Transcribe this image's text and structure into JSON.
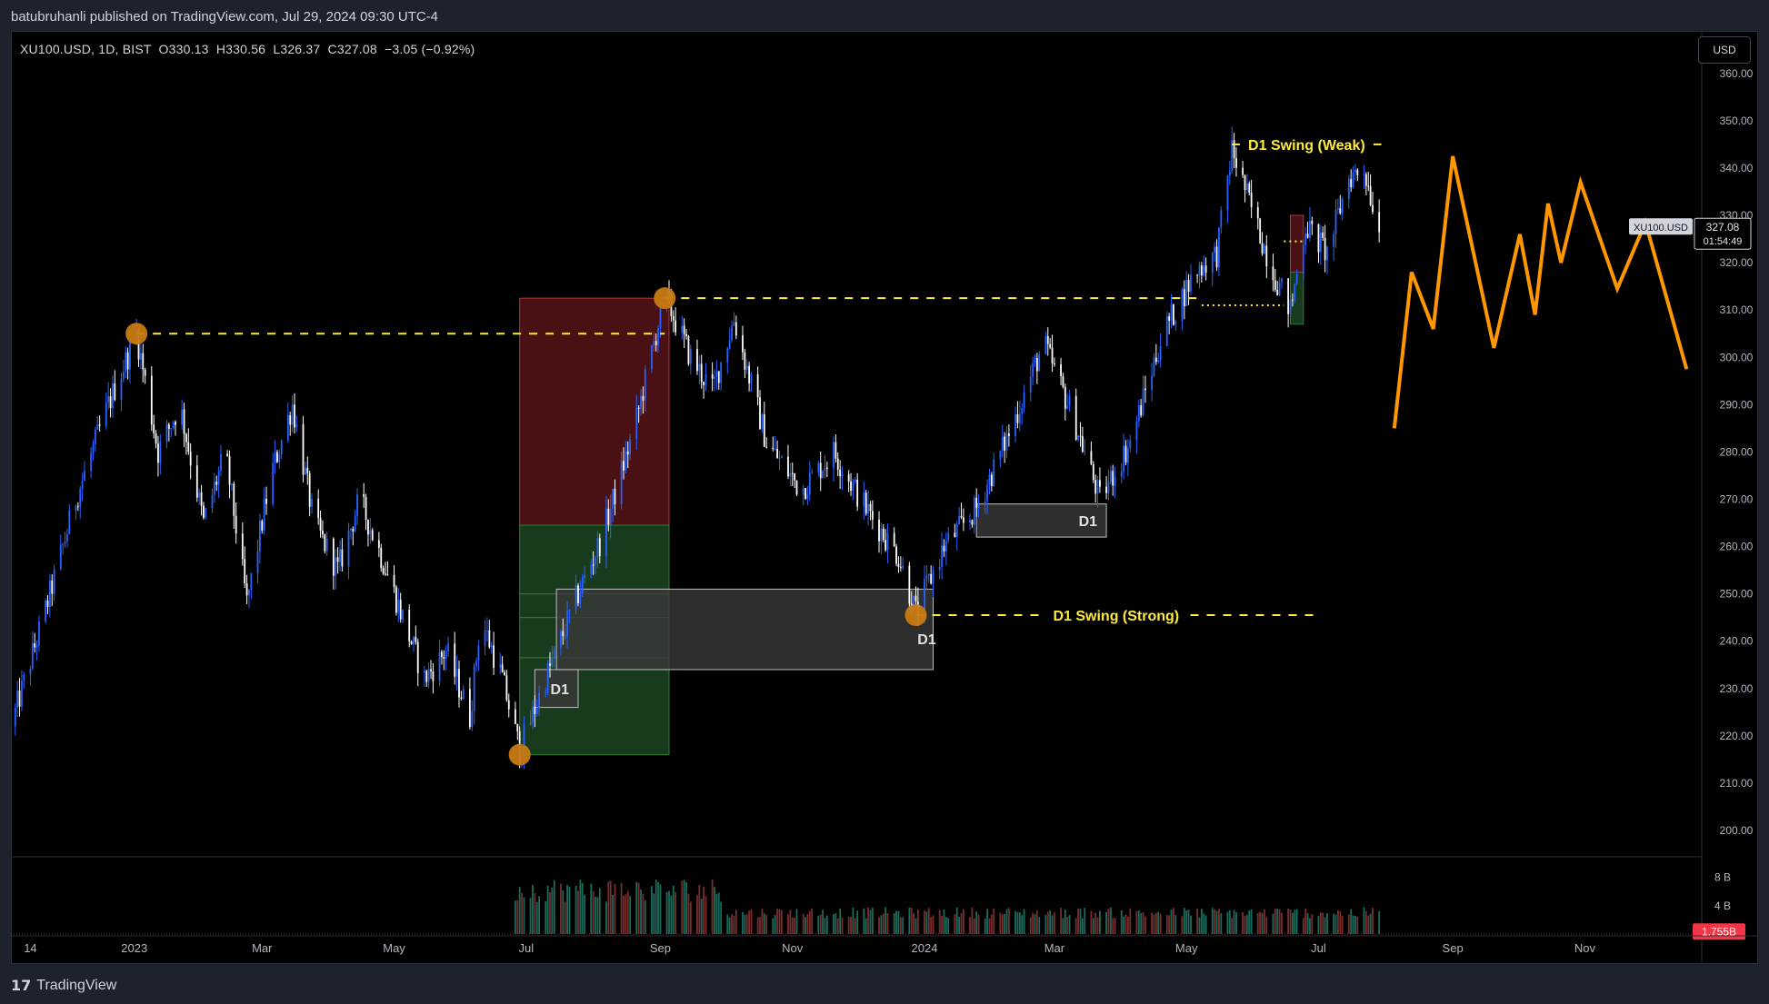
{
  "header": {
    "published_text": "batubruhanli published on TradingView.com, Jul 29, 2024 09:30 UTC-4"
  },
  "legend": {
    "ohlc_text": "XU100.USD, 1D, BIST  O330.13  H330.56  L326.37  C327.08  −3.05 (−0.92%)"
  },
  "currency_button": "USD",
  "footer": {
    "brand": "TradingView",
    "logo_mark": "17"
  },
  "price_tag": {
    "symbol": "XU100.USD",
    "price": "327.08",
    "countdown": "01:54:49"
  },
  "volume_tag": "1.755B",
  "colors": {
    "up": "#2962ff",
    "down": "#ffffff",
    "swing_line": "#ffeb3b",
    "projection": "#ff9800",
    "pivot": "#c77a12",
    "stop_zone": "#4a1115",
    "target_zone": "#173b1c",
    "order_block": "#3a3a3a",
    "price_tag": "#d1d4dc",
    "volume_up": "#1b6b5c",
    "volume_down": "#7a2d2d",
    "volume_tag": "#f23645"
  },
  "chart_data": {
    "type": "candlestick",
    "symbol": "XU100.USD",
    "interval": "1D",
    "exchange": "BIST",
    "last": {
      "open": 330.13,
      "high": 330.56,
      "low": 326.37,
      "close": 327.08,
      "change": -3.05,
      "change_pct": -0.92
    },
    "y_axis": {
      "ticks": [
        200,
        210,
        220,
        230,
        240,
        250,
        260,
        270,
        280,
        290,
        300,
        310,
        320,
        330,
        340,
        350,
        360
      ],
      "ylim": [
        195,
        364
      ],
      "side": "right"
    },
    "x_axis": {
      "tick_labels": [
        "14",
        "2023",
        "Mar",
        "May",
        "Jul",
        "Sep",
        "Nov",
        "2024",
        "Mar",
        "May",
        "Jul",
        "Sep",
        "Nov"
      ],
      "tick_dates": [
        "2022-11-14",
        "2023-01-01",
        "2023-03-01",
        "2023-05-01",
        "2023-07-01",
        "2023-09-01",
        "2023-11-01",
        "2024-01-01",
        "2024-03-01",
        "2024-05-01",
        "2024-07-01",
        "2024-09-01",
        "2024-11-01"
      ],
      "range": [
        "2022-11-05",
        "2024-12-25"
      ]
    },
    "price_path": [
      [
        "2022-11-05",
        222
      ],
      [
        "2022-11-20",
        245
      ],
      [
        "2022-12-05",
        270
      ],
      [
        "2022-12-20",
        290
      ],
      [
        "2023-01-02",
        305
      ],
      [
        "2023-01-12",
        280
      ],
      [
        "2023-01-22",
        290
      ],
      [
        "2023-02-02",
        265
      ],
      [
        "2023-02-12",
        280
      ],
      [
        "2023-02-22",
        248
      ],
      [
        "2023-03-05",
        275
      ],
      [
        "2023-03-15",
        290
      ],
      [
        "2023-03-25",
        265
      ],
      [
        "2023-04-05",
        255
      ],
      [
        "2023-04-15",
        270
      ],
      [
        "2023-04-25",
        258
      ],
      [
        "2023-05-05",
        245
      ],
      [
        "2023-05-15",
        232
      ],
      [
        "2023-05-25",
        238
      ],
      [
        "2023-06-05",
        224
      ],
      [
        "2023-06-10",
        245
      ],
      [
        "2023-06-20",
        232
      ],
      [
        "2023-06-28",
        217
      ],
      [
        "2023-07-10",
        232
      ],
      [
        "2023-07-25",
        250
      ],
      [
        "2023-08-05",
        262
      ],
      [
        "2023-08-20",
        285
      ],
      [
        "2023-09-03",
        313
      ],
      [
        "2023-09-15",
        300
      ],
      [
        "2023-09-25",
        293
      ],
      [
        "2023-10-05",
        308
      ],
      [
        "2023-10-20",
        282
      ],
      [
        "2023-11-05",
        272
      ],
      [
        "2023-11-20",
        280
      ],
      [
        "2023-12-05",
        268
      ],
      [
        "2023-12-20",
        258
      ],
      [
        "2023-12-28",
        246
      ],
      [
        "2024-01-10",
        260
      ],
      [
        "2024-01-25",
        268
      ],
      [
        "2024-02-10",
        285
      ],
      [
        "2024-02-25",
        303
      ],
      [
        "2024-03-10",
        287
      ],
      [
        "2024-03-22",
        270
      ],
      [
        "2024-04-05",
        282
      ],
      [
        "2024-04-20",
        305
      ],
      [
        "2024-05-05",
        318
      ],
      [
        "2024-05-15",
        322
      ],
      [
        "2024-05-22",
        344
      ],
      [
        "2024-06-01",
        330
      ],
      [
        "2024-06-10",
        318
      ],
      [
        "2024-06-18",
        310
      ],
      [
        "2024-06-25",
        328
      ],
      [
        "2024-07-05",
        322
      ],
      [
        "2024-07-15",
        338
      ],
      [
        "2024-07-22",
        340
      ],
      [
        "2024-07-29",
        327
      ]
    ],
    "pivots": [
      {
        "date": "2023-01-02",
        "price": 305
      },
      {
        "date": "2023-06-28",
        "price": 216
      },
      {
        "date": "2023-09-03",
        "price": 312.5
      },
      {
        "date": "2023-12-28",
        "price": 245.5
      }
    ],
    "horizontal_levels": [
      {
        "from": "2023-01-02",
        "to": "2023-09-03",
        "price": 305,
        "style": "dashed"
      },
      {
        "from": "2023-09-03",
        "to": "2024-05-08",
        "price": 312.5,
        "style": "dashed"
      },
      {
        "from": "2024-05-22",
        "to": "2024-07-30",
        "price": 345,
        "style": "dashed",
        "label": "D1 Swing (Weak)"
      },
      {
        "from": "2023-12-28",
        "to": "2024-06-30",
        "price": 245.5,
        "style": "dashed",
        "label": "D1 Swing (Strong)"
      },
      {
        "from": "2024-05-08",
        "to": "2024-06-15",
        "price": 311,
        "style": "dotted"
      },
      {
        "from": "2024-06-15",
        "to": "2024-06-25",
        "price": 324.5,
        "style": "dotted"
      }
    ],
    "position_boxes": [
      {
        "from": "2023-06-28",
        "to": "2023-09-05",
        "entry": 264.5,
        "stop": 312.5,
        "target": 216
      },
      {
        "from": "2024-06-18",
        "to": "2024-06-24",
        "entry": 318,
        "stop": 330,
        "target": 307
      }
    ],
    "order_blocks": [
      {
        "from": "2023-07-05",
        "to": "2023-07-25",
        "top": 234,
        "bottom": 226,
        "label": "D1"
      },
      {
        "from": "2023-07-15",
        "to": "2024-01-05",
        "top": 251,
        "bottom": 234,
        "label": ""
      },
      {
        "from": "2024-01-25",
        "to": "2024-03-25",
        "top": 269,
        "bottom": 262,
        "label": "D1"
      }
    ],
    "extra_labels": [
      {
        "date": "2023-12-28",
        "price": 240.5,
        "text": "D1"
      }
    ],
    "projection": [
      [
        "2024-08-05",
        285
      ],
      [
        "2024-08-13",
        318
      ],
      [
        "2024-08-23",
        306
      ],
      [
        "2024-09-01",
        342.5
      ],
      [
        "2024-09-20",
        302
      ],
      [
        "2024-10-02",
        326
      ],
      [
        "2024-10-09",
        309
      ],
      [
        "2024-10-15",
        332.5
      ],
      [
        "2024-10-21",
        320
      ],
      [
        "2024-10-30",
        337
      ],
      [
        "2024-11-16",
        314.5
      ],
      [
        "2024-11-29",
        328.5
      ],
      [
        "2024-12-18",
        297.5
      ]
    ],
    "volume": {
      "start": "2023-06-26",
      "end": "2024-07-29",
      "scale_labels": [
        "8 B",
        "4 B"
      ],
      "scale_values": [
        8,
        4
      ],
      "last": 1.755
    }
  }
}
